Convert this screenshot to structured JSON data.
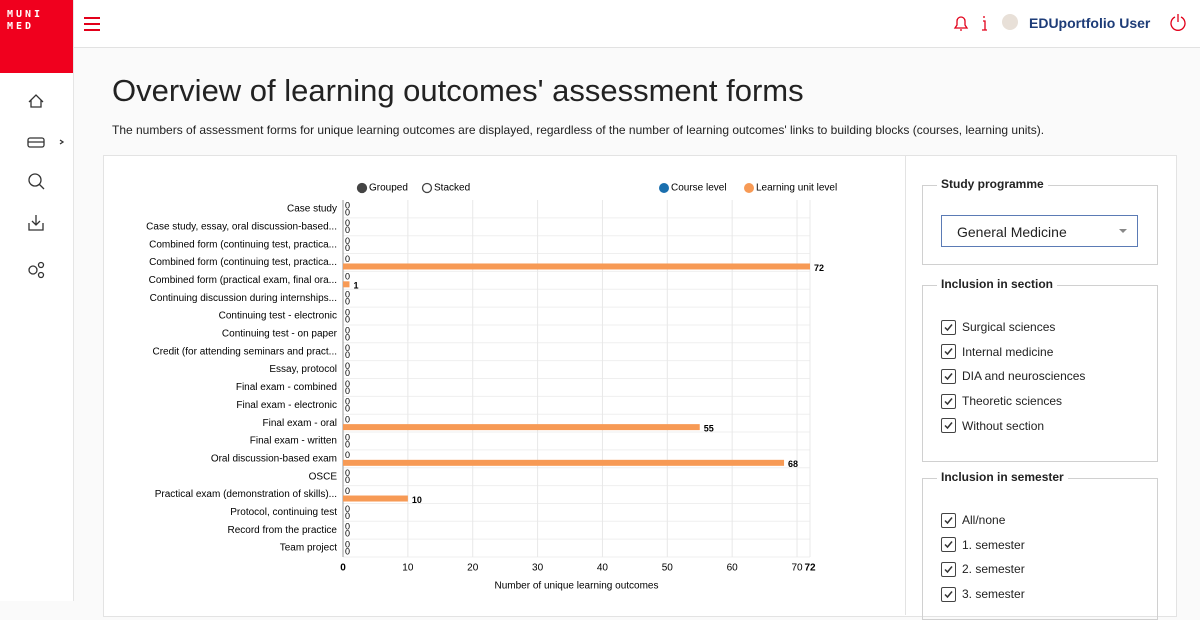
{
  "sidebar": {
    "logo": [
      "MUNI",
      "MED"
    ]
  },
  "header": {
    "user": "EDUportfolio User"
  },
  "page": {
    "title": "Overview of learning outcomes' assessment forms",
    "description": "The numbers of assessment forms for unique learning outcomes are displayed, regardless of the number of learning outcomes' links to building blocks (courses, learning units)."
  },
  "chart_data": {
    "type": "bar",
    "orientation": "horizontal",
    "modes": [
      {
        "label": "Grouped",
        "selected": true
      },
      {
        "label": "Stacked",
        "selected": false
      }
    ],
    "categories": [
      "Case study",
      "Case study, essay, oral discussion-based...",
      "Combined form (continuing test, practica...",
      "Combined form (continuing test, practica...",
      "Combined form (practical exam, final ora...",
      "Continuing discussion during internships...",
      "Continuing test - electronic",
      "Continuing test - on paper",
      "Credit (for attending seminars and pract...",
      "Essay, protocol",
      "Final exam - combined",
      "Final exam - electronic",
      "Final exam - oral",
      "Final exam - written",
      "Oral discussion-based exam",
      "OSCE",
      "Practical exam (demonstration of skills)...",
      "Protocol, continuing test",
      "Record from the practice",
      "Team project"
    ],
    "series": [
      {
        "name": "Course level",
        "color": "#1a6fae",
        "values": [
          0,
          0,
          0,
          0,
          0,
          0,
          0,
          0,
          0,
          0,
          0,
          0,
          0,
          0,
          0,
          0,
          0,
          0,
          0,
          0
        ]
      },
      {
        "name": "Learning unit level",
        "color": "#f79a55",
        "values": [
          0,
          0,
          0,
          72,
          1,
          0,
          0,
          0,
          0,
          0,
          0,
          0,
          55,
          0,
          68,
          0,
          10,
          0,
          0,
          0
        ]
      }
    ],
    "xlim": [
      0,
      72
    ],
    "xticks": [
      0,
      10,
      20,
      30,
      40,
      50,
      60,
      70,
      72
    ],
    "x_label": "Number of unique learning outcomes",
    "grid": true
  },
  "filters": [
    {
      "legend": "Study programme",
      "select": "General Medicine"
    },
    {
      "legend": "Inclusion in section",
      "options": [
        {
          "label": "Surgical sciences",
          "checked": true
        },
        {
          "label": "Internal medicine",
          "checked": true
        },
        {
          "label": "DIA and neurosciences",
          "checked": true
        },
        {
          "label": "Theoretic sciences",
          "checked": true
        },
        {
          "label": "Without section",
          "checked": true
        }
      ]
    },
    {
      "legend": "Inclusion in semester",
      "options": [
        {
          "label": "All/none",
          "checked": true
        },
        {
          "label": "1. semester",
          "checked": true
        },
        {
          "label": "2. semester",
          "checked": true
        },
        {
          "label": "3. semester",
          "checked": true
        }
      ]
    }
  ]
}
